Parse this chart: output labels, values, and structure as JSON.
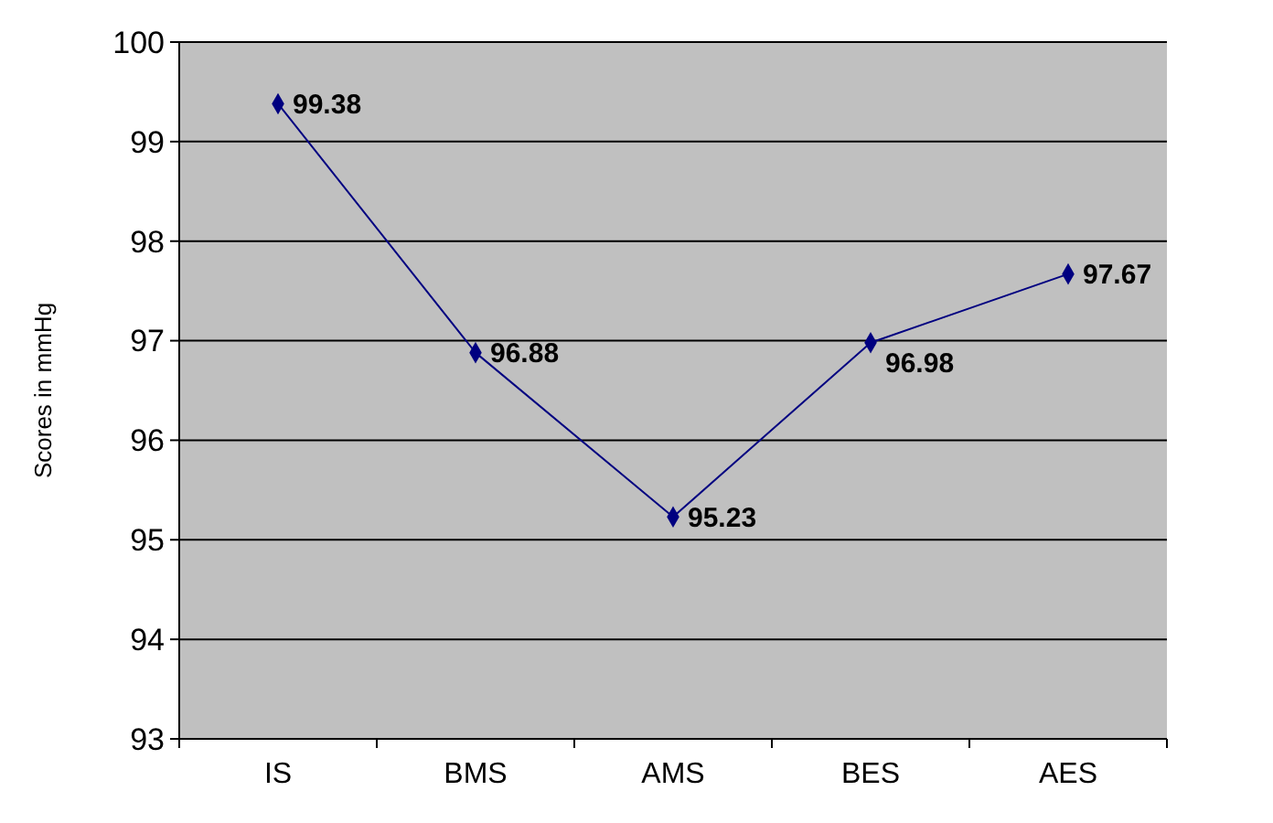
{
  "chart_data": {
    "type": "line",
    "ylabel": "Scores in mmHg",
    "categories": [
      "IS",
      "BMS",
      "AMS",
      "BES",
      "AES"
    ],
    "series": [
      {
        "color": "#000080",
        "values": [
          99.38,
          96.88,
          95.23,
          96.98,
          97.67
        ]
      }
    ],
    "ylim": [
      93,
      100
    ],
    "yticks": [
      93,
      94,
      95,
      96,
      97,
      98,
      99,
      100
    ],
    "grid": "y",
    "marker": "diamond",
    "data_labels": true
  }
}
